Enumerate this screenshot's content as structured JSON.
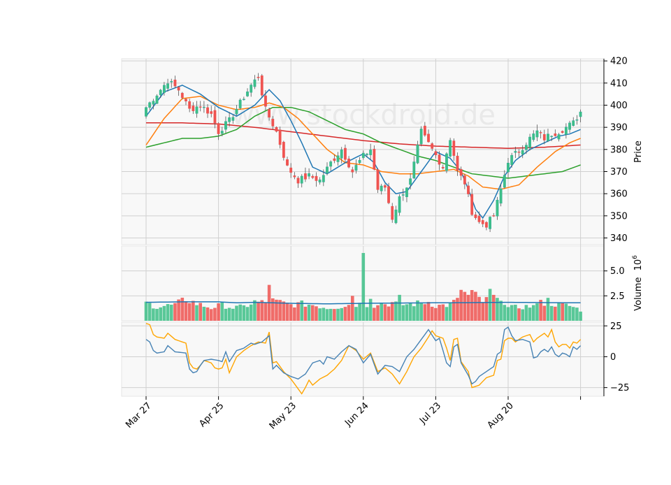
{
  "watermark": "www.stockdroid.de",
  "colors": {
    "up": "#26a69a",
    "up_fill": "#3dbf87",
    "down": "#ef5350",
    "ma5": "#1f77b4",
    "ma10": "#ff7f0e",
    "ma20": "#2ca02c",
    "ma60": "#d62728",
    "vol_ma": "#1f77b4",
    "osc1": "#4682b4",
    "osc2": "#ffa500",
    "grid": "#d0d0d0",
    "panel_bg": "#f8f8f8"
  },
  "chart_data": {
    "type": "candlestick",
    "x_tick_labels": [
      "Mar 27",
      "Apr 25",
      "May 23",
      "Jun 24",
      "Jul 23",
      "Aug 20"
    ],
    "x_tick_indices": [
      0,
      20,
      40,
      60,
      80,
      100
    ],
    "price_axis": {
      "label": "Price",
      "ylim": [
        337,
        421
      ],
      "ticks": [
        340,
        350,
        360,
        370,
        380,
        390,
        400,
        410,
        420
      ]
    },
    "volume_axis": {
      "label": "Volume",
      "exponent": "6",
      "ylim": [
        0,
        7.5
      ],
      "ticks": [
        2.5,
        5.0
      ],
      "tick_labels": [
        "2.5",
        "5.0"
      ]
    },
    "osc_axis": {
      "ylim": [
        -32,
        28
      ],
      "ticks": [
        -25,
        0,
        25
      ],
      "tick_labels": [
        "−25",
        "0",
        "25"
      ]
    },
    "close_anchors": [
      [
        0,
        399
      ],
      [
        3,
        405
      ],
      [
        6,
        411
      ],
      [
        9,
        407
      ],
      [
        12,
        398
      ],
      [
        15,
        400
      ],
      [
        18,
        396
      ],
      [
        20,
        388
      ],
      [
        23,
        393
      ],
      [
        26,
        401
      ],
      [
        29,
        409
      ],
      [
        31,
        413
      ],
      [
        33,
        398
      ],
      [
        36,
        388
      ],
      [
        39,
        372
      ],
      [
        42,
        366
      ],
      [
        45,
        368
      ],
      [
        48,
        366
      ],
      [
        51,
        374
      ],
      [
        54,
        380
      ],
      [
        57,
        370
      ],
      [
        60,
        377
      ],
      [
        62,
        380
      ],
      [
        64,
        362
      ],
      [
        66,
        363
      ],
      [
        68,
        349
      ],
      [
        70,
        358
      ],
      [
        73,
        366
      ],
      [
        76,
        388
      ],
      [
        79,
        380
      ],
      [
        82,
        372
      ],
      [
        84,
        385
      ],
      [
        86,
        370
      ],
      [
        88,
        365
      ],
      [
        90,
        352
      ],
      [
        92,
        347
      ],
      [
        94,
        346
      ],
      [
        96,
        350
      ],
      [
        98,
        362
      ],
      [
        100,
        375
      ],
      [
        102,
        378
      ],
      [
        104,
        381
      ],
      [
        106,
        385
      ],
      [
        108,
        388
      ],
      [
        110,
        385
      ],
      [
        112,
        387
      ],
      [
        114,
        388
      ],
      [
        116,
        390
      ],
      [
        118,
        392
      ],
      [
        120,
        397
      ]
    ],
    "ma5_anchors": [
      [
        0,
        395
      ],
      [
        5,
        406
      ],
      [
        10,
        409
      ],
      [
        15,
        405
      ],
      [
        20,
        399
      ],
      [
        25,
        395
      ],
      [
        30,
        400
      ],
      [
        34,
        407
      ],
      [
        37,
        402
      ],
      [
        40,
        393
      ],
      [
        43,
        383
      ],
      [
        46,
        372
      ],
      [
        50,
        369
      ],
      [
        55,
        374
      ],
      [
        60,
        378
      ],
      [
        63,
        374
      ],
      [
        66,
        365
      ],
      [
        69,
        360
      ],
      [
        72,
        361
      ],
      [
        76,
        370
      ],
      [
        80,
        379
      ],
      [
        84,
        376
      ],
      [
        87,
        370
      ],
      [
        89,
        362
      ],
      [
        91,
        353
      ],
      [
        93,
        349
      ],
      [
        96,
        357
      ],
      [
        99,
        368
      ],
      [
        102,
        375
      ],
      [
        106,
        380
      ],
      [
        110,
        383
      ],
      [
        114,
        386
      ],
      [
        117,
        387
      ],
      [
        120,
        389
      ]
    ],
    "ma10_anchors": [
      [
        0,
        382
      ],
      [
        5,
        394
      ],
      [
        10,
        403
      ],
      [
        15,
        404
      ],
      [
        20,
        400
      ],
      [
        25,
        398
      ],
      [
        30,
        399
      ],
      [
        34,
        401
      ],
      [
        38,
        399
      ],
      [
        42,
        394
      ],
      [
        46,
        387
      ],
      [
        50,
        380
      ],
      [
        55,
        374
      ],
      [
        60,
        373
      ],
      [
        65,
        370
      ],
      [
        70,
        369
      ],
      [
        75,
        369
      ],
      [
        80,
        370
      ],
      [
        85,
        371
      ],
      [
        89,
        368
      ],
      [
        93,
        363
      ],
      [
        98,
        362
      ],
      [
        103,
        364
      ],
      [
        108,
        372
      ],
      [
        113,
        379
      ],
      [
        117,
        383
      ],
      [
        120,
        385
      ]
    ],
    "ma20_anchors": [
      [
        0,
        381
      ],
      [
        5,
        383
      ],
      [
        10,
        385
      ],
      [
        15,
        385
      ],
      [
        20,
        386
      ],
      [
        25,
        389
      ],
      [
        30,
        395
      ],
      [
        35,
        399
      ],
      [
        40,
        399
      ],
      [
        45,
        397
      ],
      [
        50,
        393
      ],
      [
        55,
        389
      ],
      [
        60,
        387
      ],
      [
        65,
        383
      ],
      [
        70,
        380
      ],
      [
        75,
        377
      ],
      [
        80,
        375
      ],
      [
        85,
        372
      ],
      [
        90,
        369
      ],
      [
        95,
        368
      ],
      [
        100,
        367
      ],
      [
        105,
        368
      ],
      [
        110,
        369
      ],
      [
        115,
        370
      ],
      [
        120,
        373
      ]
    ],
    "ma60_anchors": [
      [
        0,
        392
      ],
      [
        10,
        392
      ],
      [
        20,
        391.5
      ],
      [
        30,
        390
      ],
      [
        40,
        388
      ],
      [
        50,
        386
      ],
      [
        60,
        384
      ],
      [
        70,
        382.5
      ],
      [
        80,
        381.5
      ],
      [
        90,
        381
      ],
      [
        100,
        380.5
      ],
      [
        110,
        381
      ],
      [
        120,
        382
      ]
    ],
    "vol_level_anchors": [
      [
        0,
        1.8
      ],
      [
        3,
        1.4
      ],
      [
        8,
        1.6
      ],
      [
        11,
        2.2
      ],
      [
        14,
        1.7
      ],
      [
        18,
        1.3
      ],
      [
        21,
        1.6
      ],
      [
        24,
        1.3
      ],
      [
        27,
        1.4
      ],
      [
        30,
        1.9
      ],
      [
        33,
        1.8
      ],
      [
        35,
        2.0
      ],
      [
        40,
        1.6
      ],
      [
        43,
        1.7
      ],
      [
        46,
        1.6
      ],
      [
        50,
        1.3
      ],
      [
        53,
        1.4
      ],
      [
        56,
        1.6
      ],
      [
        60,
        1.7
      ],
      [
        62,
        1.6
      ],
      [
        64,
        1.5
      ],
      [
        68,
        1.8
      ],
      [
        70,
        1.6
      ],
      [
        74,
        1.7
      ],
      [
        78,
        1.9
      ],
      [
        80,
        1.5
      ],
      [
        84,
        1.6
      ],
      [
        87,
        2.2
      ],
      [
        90,
        2.8
      ],
      [
        93,
        1.9
      ],
      [
        96,
        2.4
      ],
      [
        98,
        2.5
      ],
      [
        100,
        1.3
      ],
      [
        104,
        1.4
      ],
      [
        108,
        1.5
      ],
      [
        111,
        1.8
      ],
      [
        114,
        1.6
      ],
      [
        117,
        1.5
      ],
      [
        120,
        1.1
      ]
    ],
    "vol_spikes": [
      [
        34,
        3.6
      ],
      [
        57,
        2.5
      ],
      [
        60,
        6.8
      ],
      [
        62,
        2.2
      ],
      [
        65,
        1.8
      ],
      [
        70,
        2.6
      ],
      [
        85,
        2.1
      ],
      [
        87,
        3.1
      ],
      [
        88,
        2.9
      ],
      [
        89,
        2.6
      ],
      [
        95,
        3.2
      ],
      [
        97,
        2.3
      ],
      [
        109,
        2.1
      ],
      [
        111,
        2.3
      ]
    ],
    "vol_ma_anchors": [
      [
        0,
        1.85
      ],
      [
        10,
        1.9
      ],
      [
        20,
        1.9
      ],
      [
        25,
        1.8
      ],
      [
        30,
        1.85
      ],
      [
        40,
        1.75
      ],
      [
        50,
        1.7
      ],
      [
        60,
        1.75
      ],
      [
        70,
        1.78
      ],
      [
        80,
        1.8
      ],
      [
        90,
        1.82
      ],
      [
        100,
        1.85
      ],
      [
        110,
        1.82
      ],
      [
        120,
        1.8
      ]
    ],
    "osc1_anchors": [
      [
        0,
        14
      ],
      [
        1,
        12
      ],
      [
        2,
        5
      ],
      [
        3,
        3
      ],
      [
        5,
        4
      ],
      [
        6,
        9
      ],
      [
        8,
        4
      ],
      [
        11,
        3
      ],
      [
        12,
        -10
      ],
      [
        13,
        -13
      ],
      [
        14,
        -12
      ],
      [
        15,
        -7
      ],
      [
        16,
        -3
      ],
      [
        18,
        -2
      ],
      [
        20,
        -3
      ],
      [
        21,
        -4
      ],
      [
        22,
        4
      ],
      [
        23,
        -4
      ],
      [
        25,
        5
      ],
      [
        27,
        7
      ],
      [
        29,
        11
      ],
      [
        30,
        10
      ],
      [
        32,
        12
      ],
      [
        34,
        17
      ],
      [
        35,
        -10
      ],
      [
        36,
        -7
      ],
      [
        38,
        -13
      ],
      [
        40,
        -16
      ],
      [
        42,
        -18
      ],
      [
        44,
        -14
      ],
      [
        46,
        -5
      ],
      [
        48,
        -3
      ],
      [
        49,
        -6
      ],
      [
        50,
        0
      ],
      [
        52,
        -2
      ],
      [
        54,
        4
      ],
      [
        56,
        9
      ],
      [
        58,
        6
      ],
      [
        60,
        -5
      ],
      [
        62,
        2
      ],
      [
        64,
        -14
      ],
      [
        66,
        -7
      ],
      [
        68,
        -8
      ],
      [
        70,
        -12
      ],
      [
        72,
        0
      ],
      [
        74,
        6
      ],
      [
        76,
        14
      ],
      [
        78,
        22
      ],
      [
        80,
        13
      ],
      [
        81,
        15
      ],
      [
        82,
        5
      ],
      [
        83,
        -5
      ],
      [
        84,
        -8
      ],
      [
        85,
        8
      ],
      [
        86,
        10
      ],
      [
        87,
        -5
      ],
      [
        88,
        -10
      ],
      [
        89,
        -15
      ],
      [
        90,
        -22
      ],
      [
        91,
        -20
      ],
      [
        92,
        -16
      ],
      [
        94,
        -12
      ],
      [
        96,
        -8
      ],
      [
        97,
        2
      ],
      [
        98,
        4
      ],
      [
        99,
        22
      ],
      [
        100,
        24
      ],
      [
        101,
        17
      ],
      [
        102,
        13
      ],
      [
        104,
        14
      ],
      [
        106,
        12
      ],
      [
        107,
        -1
      ],
      [
        108,
        0
      ],
      [
        109,
        4
      ],
      [
        110,
        6
      ],
      [
        111,
        4
      ],
      [
        112,
        8
      ],
      [
        113,
        2
      ],
      [
        114,
        0
      ],
      [
        115,
        3
      ],
      [
        116,
        2
      ],
      [
        117,
        0
      ],
      [
        118,
        8
      ],
      [
        119,
        6
      ],
      [
        120,
        9
      ]
    ],
    "osc2_anchors": [
      [
        0,
        27
      ],
      [
        1,
        26
      ],
      [
        2,
        18
      ],
      [
        3,
        16
      ],
      [
        5,
        15
      ],
      [
        6,
        19
      ],
      [
        8,
        14
      ],
      [
        11,
        11
      ],
      [
        12,
        -5
      ],
      [
        13,
        -9
      ],
      [
        14,
        -10
      ],
      [
        15,
        -7
      ],
      [
        16,
        -3
      ],
      [
        18,
        -5
      ],
      [
        19,
        -9
      ],
      [
        20,
        -10
      ],
      [
        21,
        -9
      ],
      [
        22,
        -2
      ],
      [
        23,
        -13
      ],
      [
        25,
        0
      ],
      [
        27,
        5
      ],
      [
        29,
        9
      ],
      [
        31,
        12
      ],
      [
        33,
        11
      ],
      [
        34,
        20
      ],
      [
        35,
        -5
      ],
      [
        36,
        -4
      ],
      [
        38,
        -12
      ],
      [
        40,
        -18
      ],
      [
        42,
        -26
      ],
      [
        43,
        -30
      ],
      [
        44,
        -25
      ],
      [
        45,
        -19
      ],
      [
        46,
        -23
      ],
      [
        48,
        -18
      ],
      [
        50,
        -15
      ],
      [
        52,
        -10
      ],
      [
        54,
        -3
      ],
      [
        56,
        9
      ],
      [
        58,
        5
      ],
      [
        60,
        -2
      ],
      [
        62,
        3
      ],
      [
        64,
        -12
      ],
      [
        66,
        -9
      ],
      [
        68,
        -14
      ],
      [
        70,
        -22
      ],
      [
        72,
        -12
      ],
      [
        74,
        0
      ],
      [
        76,
        7
      ],
      [
        78,
        16
      ],
      [
        79,
        21
      ],
      [
        80,
        17
      ],
      [
        82,
        15
      ],
      [
        83,
        7
      ],
      [
        84,
        -3
      ],
      [
        85,
        14
      ],
      [
        86,
        15
      ],
      [
        87,
        -4
      ],
      [
        88,
        -8
      ],
      [
        89,
        -12
      ],
      [
        90,
        -25
      ],
      [
        91,
        -24
      ],
      [
        92,
        -23
      ],
      [
        94,
        -17
      ],
      [
        96,
        -15
      ],
      [
        97,
        -3
      ],
      [
        98,
        -2
      ],
      [
        99,
        13
      ],
      [
        100,
        15
      ],
      [
        101,
        15
      ],
      [
        102,
        12
      ],
      [
        104,
        16
      ],
      [
        106,
        18
      ],
      [
        107,
        12
      ],
      [
        108,
        15
      ],
      [
        109,
        17
      ],
      [
        110,
        19
      ],
      [
        111,
        16
      ],
      [
        112,
        22
      ],
      [
        113,
        12
      ],
      [
        114,
        8
      ],
      [
        115,
        10
      ],
      [
        116,
        10
      ],
      [
        117,
        7
      ],
      [
        118,
        12
      ],
      [
        119,
        11
      ],
      [
        120,
        14
      ]
    ]
  }
}
